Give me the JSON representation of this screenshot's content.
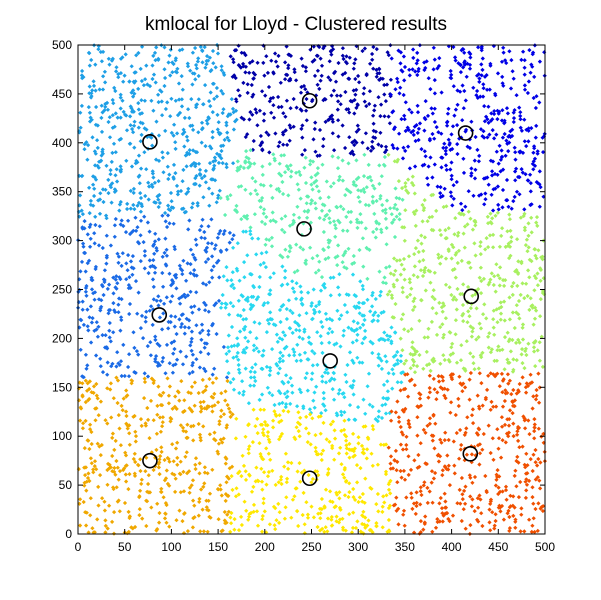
{
  "chart_data": {
    "type": "scatter",
    "title": "kmlocal for Lloyd - Clustered results",
    "xlabel": "",
    "ylabel": "",
    "xlim": [
      0,
      500
    ],
    "ylim": [
      0,
      500
    ],
    "xticks": [
      0,
      50,
      100,
      150,
      200,
      250,
      300,
      350,
      400,
      450,
      500
    ],
    "yticks": [
      0,
      50,
      100,
      150,
      200,
      250,
      300,
      350,
      400,
      450,
      500
    ],
    "grid": false,
    "legend": "none",
    "clusters": [
      {
        "color": "#1e9fe6",
        "center": [
          77,
          401
        ],
        "region": [
          [
            0,
            500
          ],
          [
            150,
            500
          ],
          [
            170,
            440
          ],
          [
            170,
            395
          ],
          [
            140,
            330
          ],
          [
            0,
            320
          ]
        ]
      },
      {
        "color": "#0000a8",
        "center": [
          248,
          443
        ],
        "region": [
          [
            150,
            500
          ],
          [
            335,
            500
          ],
          [
            335,
            390
          ],
          [
            240,
            385
          ],
          [
            170,
            395
          ],
          [
            170,
            440
          ]
        ]
      },
      {
        "color": "#0000e6",
        "center": [
          415,
          410
        ],
        "region": [
          [
            335,
            500
          ],
          [
            500,
            500
          ],
          [
            500,
            330
          ],
          [
            400,
            330
          ],
          [
            330,
            395
          ]
        ]
      },
      {
        "color": "#60f0b0",
        "center": [
          242,
          312
        ],
        "region": [
          [
            170,
            395
          ],
          [
            240,
            385
          ],
          [
            330,
            390
          ],
          [
            350,
            335
          ],
          [
            330,
            250
          ],
          [
            290,
            270
          ],
          [
            240,
            255
          ],
          [
            175,
            320
          ]
        ]
      },
      {
        "color": "#1a6ae6",
        "center": [
          87,
          224
        ],
        "region": [
          [
            0,
            320
          ],
          [
            140,
            330
          ],
          [
            175,
            320
          ],
          [
            150,
            250
          ],
          [
            160,
            160
          ],
          [
            0,
            160
          ]
        ]
      },
      {
        "color": "#a8f060",
        "center": [
          421,
          243
        ],
        "region": [
          [
            330,
            390
          ],
          [
            500,
            330
          ],
          [
            500,
            165
          ],
          [
            350,
            165
          ],
          [
            330,
            250
          ],
          [
            350,
            335
          ]
        ]
      },
      {
        "color": "#28d8f0",
        "center": [
          270,
          177
        ],
        "region": [
          [
            175,
            320
          ],
          [
            240,
            255
          ],
          [
            290,
            270
          ],
          [
            330,
            250
          ],
          [
            350,
            165
          ],
          [
            330,
            110
          ],
          [
            170,
            135
          ],
          [
            160,
            160
          ],
          [
            150,
            250
          ]
        ]
      },
      {
        "color": "#f0a800",
        "center": [
          77,
          75
        ],
        "region": [
          [
            0,
            160
          ],
          [
            160,
            160
          ],
          [
            170,
            135
          ],
          [
            160,
            0
          ],
          [
            0,
            0
          ]
        ]
      },
      {
        "color": "#ffe800",
        "center": [
          248,
          57
        ],
        "region": [
          [
            170,
            135
          ],
          [
            330,
            110
          ],
          [
            340,
            0
          ],
          [
            160,
            0
          ]
        ]
      },
      {
        "color": "#f05000",
        "center": [
          420,
          82
        ],
        "region": [
          [
            350,
            165
          ],
          [
            500,
            165
          ],
          [
            500,
            0
          ],
          [
            340,
            0
          ],
          [
            330,
            110
          ]
        ]
      }
    ],
    "centers": [
      {
        "x": 77,
        "y": 401
      },
      {
        "x": 248,
        "y": 443
      },
      {
        "x": 415,
        "y": 410
      },
      {
        "x": 242,
        "y": 312
      },
      {
        "x": 87,
        "y": 224
      },
      {
        "x": 421,
        "y": 243
      },
      {
        "x": 270,
        "y": 177
      },
      {
        "x": 77,
        "y": 75
      },
      {
        "x": 248,
        "y": 57
      },
      {
        "x": 420,
        "y": 82
      }
    ],
    "marker": "diamond",
    "center_marker": "open-circle"
  }
}
